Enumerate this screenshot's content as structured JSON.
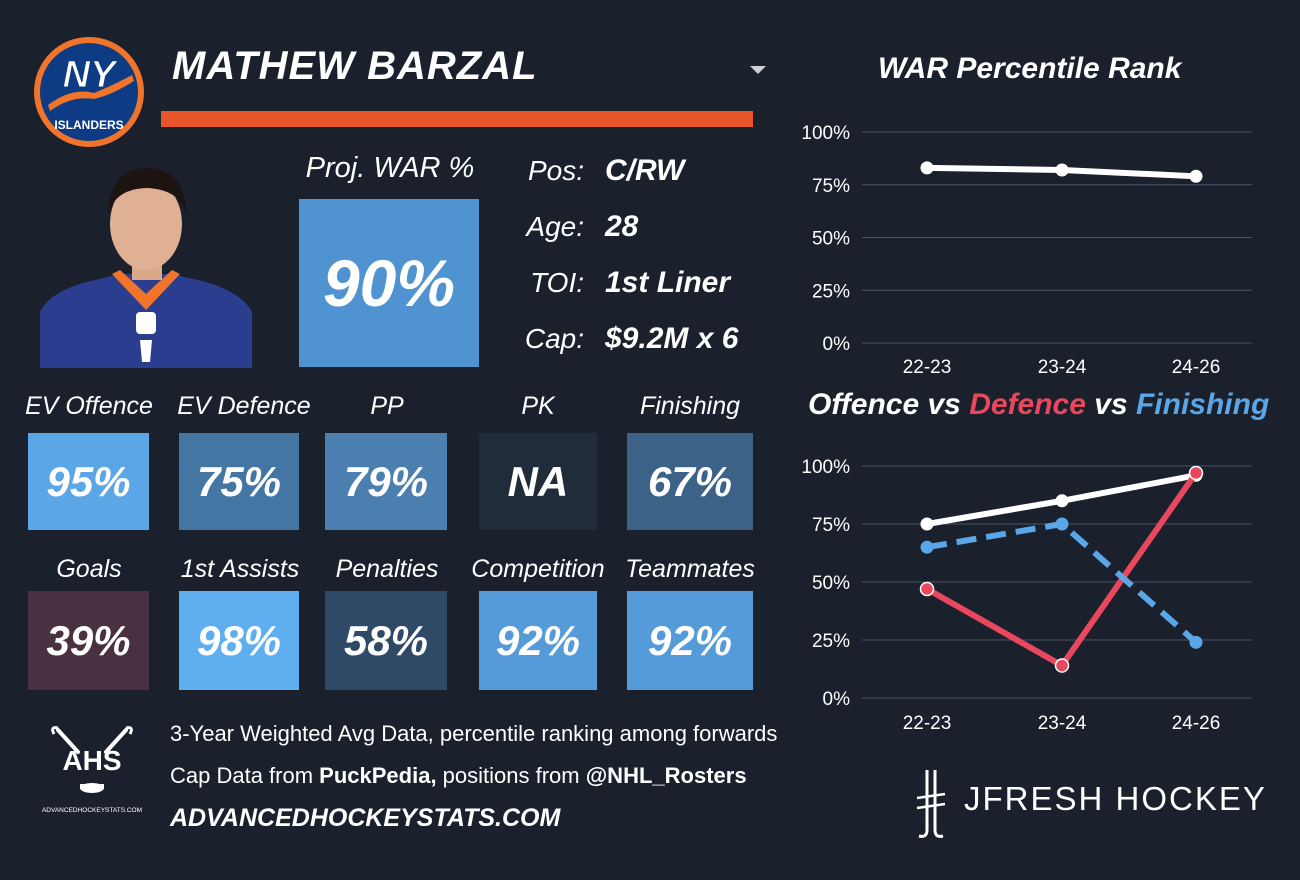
{
  "header": {
    "team_logo_text": "NY",
    "team_logo_subtext": "ISLANDERS",
    "player_name": "MATHEW BARZAL"
  },
  "proj_war": {
    "label": "Proj. WAR %",
    "value": "90%"
  },
  "bio": [
    {
      "label": "Pos:",
      "value": "C/RW"
    },
    {
      "label": "Age:",
      "value": "28"
    },
    {
      "label": "TOI:",
      "value": "1st Liner"
    },
    {
      "label": "Cap:",
      "value": "$9.2M x 6"
    }
  ],
  "tiles_row1": [
    {
      "label": "EV Offence",
      "value": "95%",
      "color": "#5aa6e6"
    },
    {
      "label": "EV Defence",
      "value": "75%",
      "color": "#4476a4"
    },
    {
      "label": "PP",
      "value": "79%",
      "color": "#4a7fb0"
    },
    {
      "label": "PK",
      "value": "NA",
      "color": "#202c3a"
    },
    {
      "label": "Finishing",
      "value": "67%",
      "color": "#3c6287"
    }
  ],
  "tiles_row2": [
    {
      "label": "Goals",
      "value": "39%",
      "color": "#4a3142"
    },
    {
      "label": "1st Assists",
      "value": "98%",
      "color": "#5eaef0"
    },
    {
      "label": "Penalties",
      "value": "58%",
      "color": "#2f4a66"
    },
    {
      "label": "Competition",
      "value": "92%",
      "color": "#559ad9"
    },
    {
      "label": "Teammates",
      "value": "92%",
      "color": "#559ad9"
    }
  ],
  "footer": {
    "ahs_logo_text": "AHS",
    "ahs_logo_subtext": "ADVANCEDHOCKEYSTATS.COM",
    "line1": "3-Year Weighted Avg Data, percentile ranking among forwards",
    "line2_prefix": "Cap Data from ",
    "line2_source": "PuckPedia,",
    "line2_middle": " positions from ",
    "line2_handle": "@NHL_Rosters",
    "url": "ADVANCEDHOCKEYSTATS.COM",
    "brand": "JFRESH HOCKEY"
  },
  "chart_titles": {
    "chart1": "WAR Percentile Rank",
    "chart2_part1": "Offence",
    "chart2_vs1": " vs ",
    "chart2_part2": "Defence",
    "chart2_vs2": " vs ",
    "chart2_part3": "Finishing"
  },
  "colors": {
    "offence": "#ffffff",
    "defence": "#e8475e",
    "finishing": "#5aa6e6",
    "accent_orange": "#e8552a"
  },
  "chart_data": [
    {
      "type": "line",
      "title": "WAR Percentile Rank",
      "categories": [
        "22-23",
        "23-24",
        "24-26"
      ],
      "yticks": [
        "0%",
        "25%",
        "50%",
        "75%",
        "100%"
      ],
      "ylim": [
        0,
        100
      ],
      "grid": true,
      "series": [
        {
          "values": [
            83,
            82,
            79
          ],
          "color": "#ffffff",
          "style": "solid"
        }
      ]
    },
    {
      "type": "line",
      "title": "Offence vs Defence vs Finishing",
      "categories": [
        "22-23",
        "23-24",
        "24-26"
      ],
      "yticks": [
        "0%",
        "25%",
        "50%",
        "75%",
        "100%"
      ],
      "ylim": [
        0,
        100
      ],
      "grid": true,
      "series": [
        {
          "name": "Offence",
          "values": [
            75,
            85,
            96
          ],
          "color": "#ffffff",
          "style": "solid"
        },
        {
          "name": "Defence",
          "values": [
            47,
            14,
            97
          ],
          "color": "#e8475e",
          "style": "solid"
        },
        {
          "name": "Finishing",
          "values": [
            65,
            75,
            24
          ],
          "color": "#5aa6e6",
          "style": "dashed"
        }
      ]
    }
  ]
}
